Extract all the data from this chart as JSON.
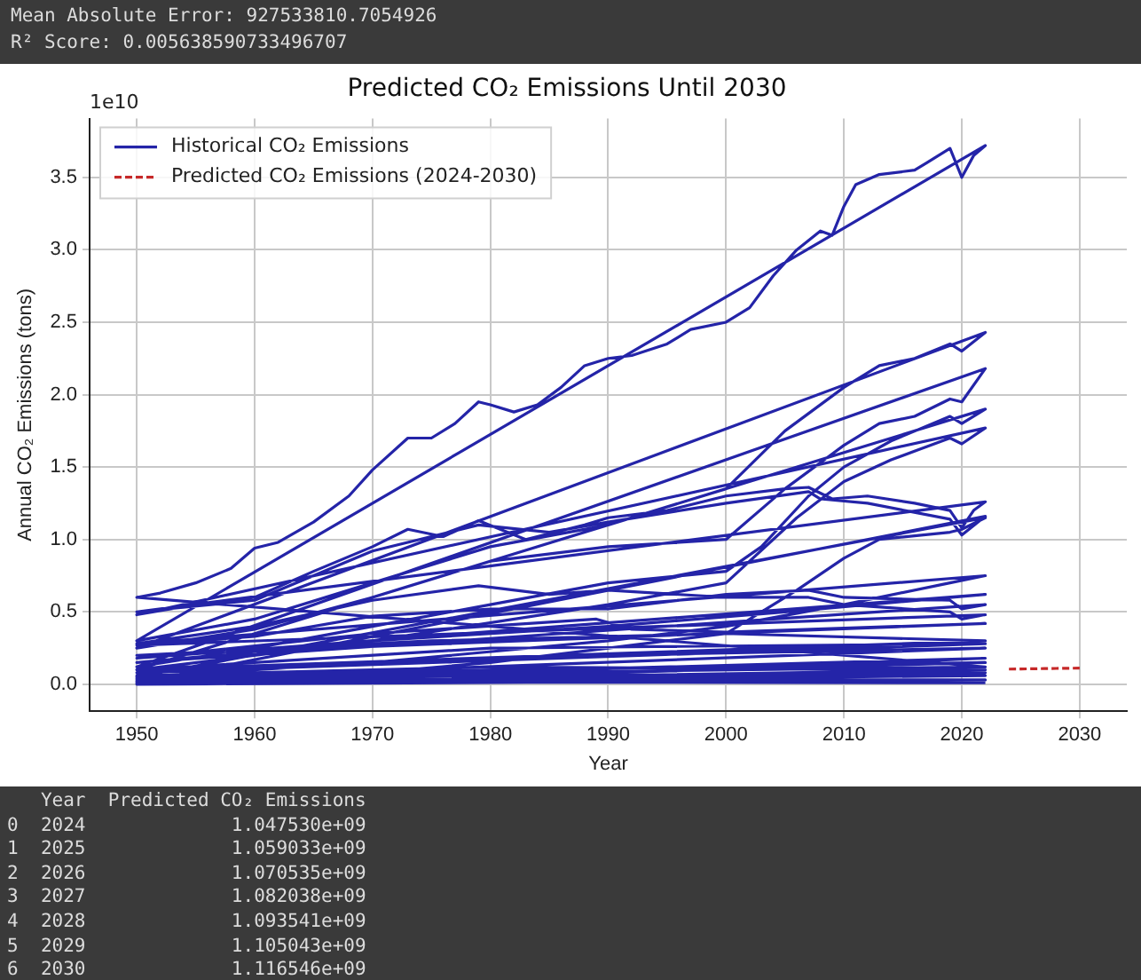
{
  "chart_data": {
    "type": "line",
    "title": "Predicted CO₂ Emissions Until 2030",
    "xlabel": "Year",
    "ylabel": "Annual CO₂ Emissions (tons)",
    "annotations": [
      "Mean Absolute Error: 927533810.7054926",
      "R² Score: 0.005638590733496707",
      "1e10",
      "   Year  Predicted CO₂ Emissions",
      "0  2024             1.047530e+09",
      "1  2025             1.059033e+09",
      "2  2026             1.070535e+09",
      "3  2027             1.082038e+09",
      "4  2028             1.093541e+09",
      "5  2029             1.105043e+09",
      "6  2030             1.116546e+09"
    ],
    "xlim": [
      1946,
      2034
    ],
    "xticks": [
      1950,
      1960,
      1970,
      1980,
      1990,
      2000,
      2010,
      2020,
      2030
    ],
    "ylim": [
      -0.186,
      3.906
    ],
    "yticks": [
      {
        "value": 0,
        "label": "0.0"
      },
      0.5,
      {
        "value": 1,
        "label": "1.0"
      },
      1.5,
      {
        "value": 2,
        "label": "2.0"
      },
      2.5,
      {
        "value": 3,
        "label": "3.0"
      },
      3.5
    ],
    "grid": true,
    "legend": "top left",
    "marker": "none",
    "series": [
      {
        "name": "Historical CO₂ Emissions",
        "color": "#2424a8",
        "line_style": "solid",
        "x": [
          1950,
          2022,
          1950,
          1952,
          1955,
          1958,
          1960,
          1962,
          1965,
          1968,
          1970,
          1973,
          1975,
          1977,
          1979,
          1980,
          1982,
          1984,
          1986,
          1988,
          1990,
          1992,
          1995,
          1997,
          2000,
          2002,
          2004,
          2006,
          2008,
          2009,
          2010,
          2011,
          2013,
          2016,
          2017,
          2019,
          2020,
          2021,
          2022,
          1950,
          1960,
          1970,
          1980,
          1990,
          2000,
          2005,
          2010,
          2013,
          2016,
          2019,
          2020,
          2022,
          1950,
          1960,
          1970,
          1980,
          1990,
          2000,
          2005,
          2010,
          2013,
          2016,
          2019,
          2020,
          2022,
          1950,
          1960,
          1970,
          1980,
          1990,
          2000,
          2003,
          2007,
          2010,
          2014,
          2019,
          2020,
          2022,
          1950,
          1970,
          1990,
          2000,
          2006,
          2010,
          2014,
          2019,
          2020,
          2022,
          1950,
          1955,
          1960,
          1965,
          1970,
          1973,
          1976,
          1979,
          1983,
          1988,
          1990,
          1995,
          2000,
          2005,
          2007,
          2009,
          2012,
          2016,
          2019,
          2020,
          2021,
          2022,
          1950,
          1960,
          1970,
          1979,
          1985,
          1990,
          2000,
          2007,
          2008,
          2012,
          2019,
          2020,
          2022,
          1950,
          1960,
          1970,
          1980,
          1990,
          2000,
          2003,
          2006,
          2010,
          2013,
          2019,
          2020,
          2022,
          1950,
          1970,
          1990,
          2000,
          2010,
          2019,
          2022,
          1950,
          1960,
          1970,
          1979,
          1985,
          1990,
          2000,
          2007,
          2010,
          2019,
          2020,
          2022,
          1950,
          1960,
          1970,
          1980,
          1990,
          2000,
          2007,
          2010,
          2019,
          2020,
          2022,
          1950,
          1970,
          1990,
          2005,
          2022,
          1950,
          1970,
          1989,
          1992,
          2000,
          2022,
          1950,
          1975,
          2000,
          2022,
          1950,
          1980,
          2022,
          1950,
          1990,
          2022,
          1950,
          2000,
          2022,
          1950,
          1990,
          2022,
          1950,
          1980,
          2022,
          1950,
          2022,
          1950,
          2022,
          1950,
          2022,
          1950,
          2022
        ],
        "values": [
          0.05,
          0.12,
          0.6,
          0.63,
          0.7,
          0.8,
          0.94,
          0.98,
          1.12,
          1.3,
          1.48,
          1.7,
          1.7,
          1.8,
          1.95,
          1.93,
          1.88,
          1.93,
          2.05,
          2.2,
          2.25,
          2.27,
          2.35,
          2.45,
          2.5,
          2.6,
          2.82,
          3.0,
          3.13,
          3.1,
          3.3,
          3.45,
          3.52,
          3.55,
          3.6,
          3.7,
          3.5,
          3.65,
          3.72,
          0.3,
          0.45,
          0.7,
          0.95,
          1.1,
          1.35,
          1.75,
          2.05,
          2.2,
          2.25,
          2.35,
          2.3,
          2.43,
          0.25,
          0.38,
          0.6,
          0.85,
          0.95,
          1.0,
          1.35,
          1.65,
          1.8,
          1.85,
          1.97,
          1.95,
          2.18,
          0.12,
          0.25,
          0.4,
          0.55,
          0.7,
          0.78,
          0.95,
          1.3,
          1.5,
          1.68,
          1.85,
          1.8,
          1.9,
          0.1,
          0.3,
          0.55,
          0.7,
          1.15,
          1.4,
          1.55,
          1.7,
          1.66,
          1.77,
          0.48,
          0.55,
          0.6,
          0.78,
          0.95,
          1.07,
          1.02,
          1.13,
          1.0,
          1.1,
          1.15,
          1.2,
          1.3,
          1.35,
          1.36,
          1.28,
          1.3,
          1.25,
          1.2,
          1.08,
          1.2,
          1.26,
          0.5,
          0.58,
          0.92,
          1.1,
          1.05,
          1.12,
          1.25,
          1.33,
          1.28,
          1.25,
          1.14,
          1.03,
          1.16,
          0.01,
          0.08,
          0.08,
          0.15,
          0.25,
          0.35,
          0.5,
          0.65,
          0.87,
          1.0,
          1.05,
          1.07,
          1.15,
          0.05,
          0.15,
          0.3,
          0.4,
          0.55,
          0.7,
          0.75,
          0.28,
          0.4,
          0.58,
          0.68,
          0.62,
          0.65,
          0.6,
          0.6,
          0.55,
          0.5,
          0.45,
          0.48,
          0.27,
          0.33,
          0.47,
          0.52,
          0.52,
          0.62,
          0.65,
          0.6,
          0.58,
          0.52,
          0.55,
          0.15,
          0.3,
          0.4,
          0.5,
          0.62,
          0.18,
          0.35,
          0.45,
          0.38,
          0.36,
          0.42,
          0.2,
          0.3,
          0.35,
          0.3,
          0.1,
          0.25,
          0.28,
          0.08,
          0.2,
          0.25,
          0.03,
          0.1,
          0.18,
          0.02,
          0.08,
          0.15,
          0.06,
          0.12,
          0.1,
          0.01,
          0.06,
          0,
          0.03,
          0.04,
          0.08,
          0.02,
          0.01
        ]
      },
      {
        "name": "Predicted CO₂ Emissions (2024-2030)",
        "color": "#c62828",
        "line_style": "dashed",
        "x": [
          2024,
          2025,
          2026,
          2027,
          2028,
          2029,
          2030
        ],
        "values": [
          0.104753,
          0.1059033,
          0.1070535,
          0.1082038,
          0.1093541,
          0.1105043,
          0.1116546
        ]
      }
    ]
  }
}
